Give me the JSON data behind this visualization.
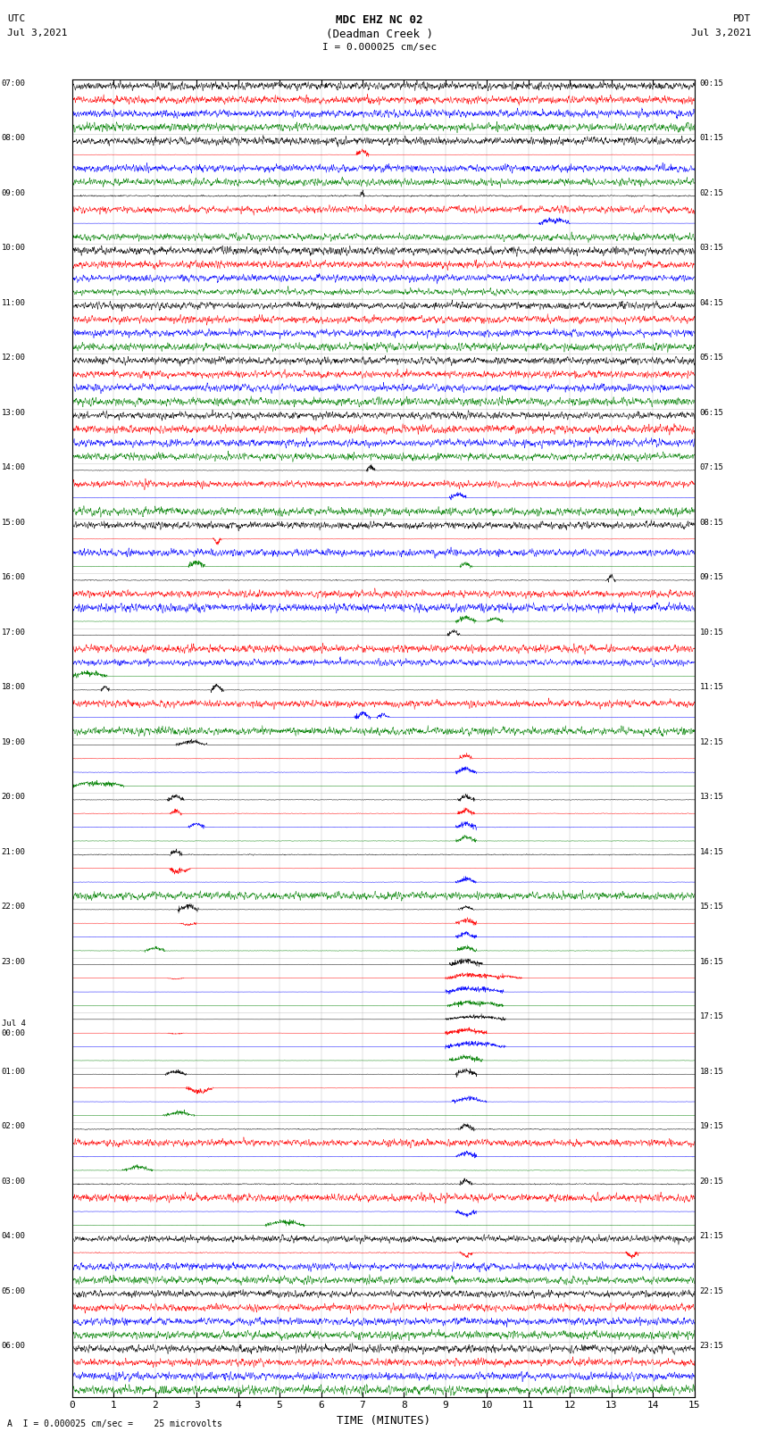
{
  "title_line1": "MDC EHZ NC 02",
  "title_line2": "(Deadman Creek )",
  "scale_label": "I = 0.000025 cm/sec",
  "left_date": "Jul 3,2021",
  "right_date": "Jul 3,2021",
  "left_tz": "UTC",
  "right_tz": "PDT",
  "xlabel": "TIME (MINUTES)",
  "bottom_label": "A  I = 0.000025 cm/sec =    25 microvolts",
  "xlim": [
    0,
    15
  ],
  "xticks": [
    0,
    1,
    2,
    3,
    4,
    5,
    6,
    7,
    8,
    9,
    10,
    11,
    12,
    13,
    14,
    15
  ],
  "num_hours": 24,
  "rows_per_hour": 4,
  "left_labels_hours": [
    "07:00",
    "08:00",
    "09:00",
    "10:00",
    "11:00",
    "12:00",
    "13:00",
    "14:00",
    "15:00",
    "16:00",
    "17:00",
    "18:00",
    "19:00",
    "20:00",
    "21:00",
    "22:00",
    "23:00",
    "Jul 4\n00:00",
    "01:00",
    "02:00",
    "03:00",
    "04:00",
    "05:00",
    "06:00"
  ],
  "right_labels": [
    "00:15",
    "01:15",
    "02:15",
    "03:15",
    "04:15",
    "05:15",
    "06:15",
    "07:15",
    "08:15",
    "09:15",
    "10:15",
    "11:15",
    "12:15",
    "13:15",
    "14:15",
    "15:15",
    "16:15",
    "17:15",
    "18:15",
    "19:15",
    "20:15",
    "21:15",
    "22:15",
    "23:15"
  ],
  "bg_color": "white",
  "trace_color_cycle": [
    "black",
    "red",
    "blue",
    "green"
  ],
  "noise_base": 0.08,
  "seed": 42
}
